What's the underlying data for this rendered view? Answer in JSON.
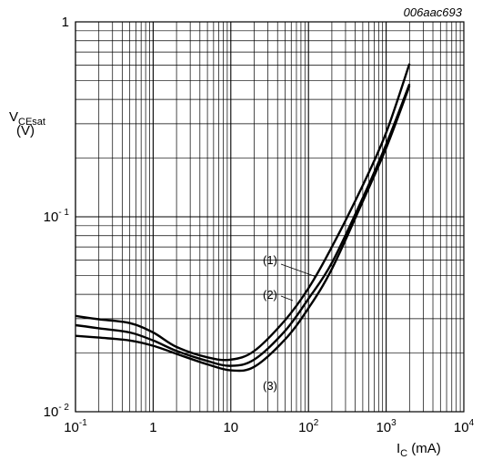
{
  "chart_data": {
    "type": "line",
    "figure_code": "006aac693",
    "x_scale": "log",
    "y_scale": "log",
    "xlim": [
      0.1,
      10000
    ],
    "ylim": [
      0.01,
      1
    ],
    "grid": true,
    "x_tick_labels": [
      {
        "value": 0.1,
        "base": "10",
        "exp": "-1"
      },
      {
        "value": 1,
        "base": "1",
        "exp": ""
      },
      {
        "value": 10,
        "base": "10",
        "exp": ""
      },
      {
        "value": 100,
        "base": "10",
        "exp": "2"
      },
      {
        "value": 1000,
        "base": "10",
        "exp": "3"
      },
      {
        "value": 10000,
        "base": "10",
        "exp": "4"
      }
    ],
    "y_tick_labels": [
      {
        "value": 1,
        "base": "1",
        "exp": ""
      },
      {
        "value": 0.1,
        "base": "10",
        "exp": "- 1"
      },
      {
        "value": 0.01,
        "base": "10",
        "exp": "- 2"
      }
    ],
    "ylabel": {
      "main": "V",
      "sub": "CEsat",
      "unit": "(V)"
    },
    "xlabel": {
      "main": "I",
      "sub": "C",
      "unit": " (mA)"
    },
    "series": [
      {
        "name": "(1)",
        "x": [
          0.1,
          0.2,
          0.5,
          1,
          2,
          5,
          10,
          20,
          50,
          100,
          200,
          500,
          1000,
          2000
        ],
        "y": [
          0.031,
          0.0298,
          0.0285,
          0.0255,
          0.0215,
          0.019,
          0.0185,
          0.0205,
          0.0295,
          0.043,
          0.07,
          0.145,
          0.27,
          0.61
        ]
      },
      {
        "name": "(2)",
        "x": [
          0.1,
          0.2,
          0.5,
          1,
          2,
          5,
          10,
          20,
          50,
          100,
          200,
          500,
          1000,
          2000
        ],
        "y": [
          0.0278,
          0.0268,
          0.0255,
          0.0232,
          0.0205,
          0.0182,
          0.0172,
          0.0185,
          0.026,
          0.038,
          0.058,
          0.125,
          0.235,
          0.48
        ]
      },
      {
        "name": "(3)",
        "x": [
          0.1,
          0.2,
          0.5,
          1,
          2,
          5,
          10,
          20,
          50,
          100,
          200,
          500,
          1000,
          2000
        ],
        "y": [
          0.0245,
          0.024,
          0.0232,
          0.0218,
          0.0198,
          0.0175,
          0.0163,
          0.017,
          0.0235,
          0.034,
          0.054,
          0.12,
          0.225,
          0.47
        ]
      }
    ]
  }
}
